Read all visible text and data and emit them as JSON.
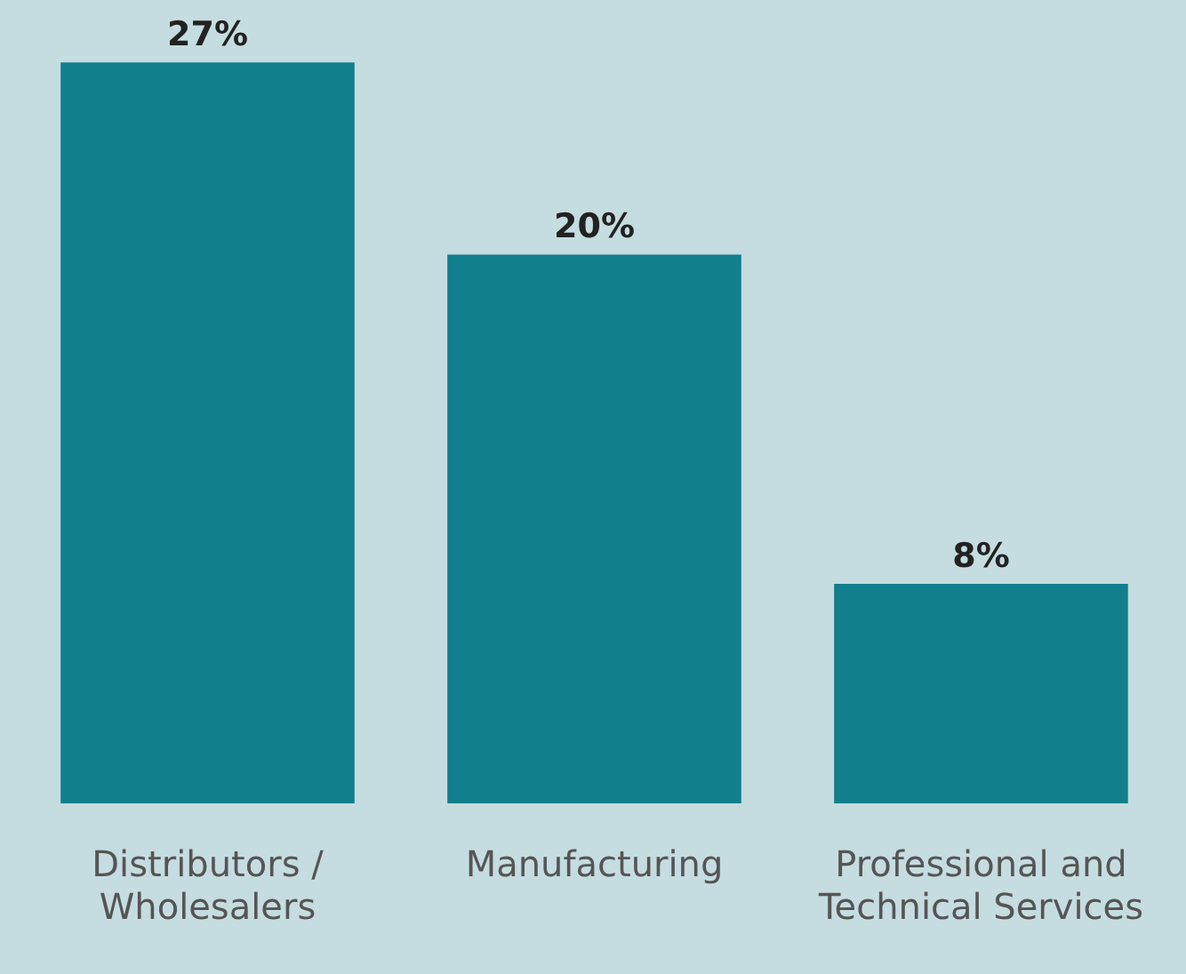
{
  "chart_data": {
    "type": "bar",
    "categories": [
      "Distributors / Wholesalers",
      "Manufacturing",
      "Professional and Technical Services"
    ],
    "values": [
      27,
      20,
      8
    ],
    "color": "#117f8c",
    "value_labels": [
      "27%",
      "20%",
      "8%"
    ],
    "relative": false,
    "grid": false,
    "legend": false
  }
}
